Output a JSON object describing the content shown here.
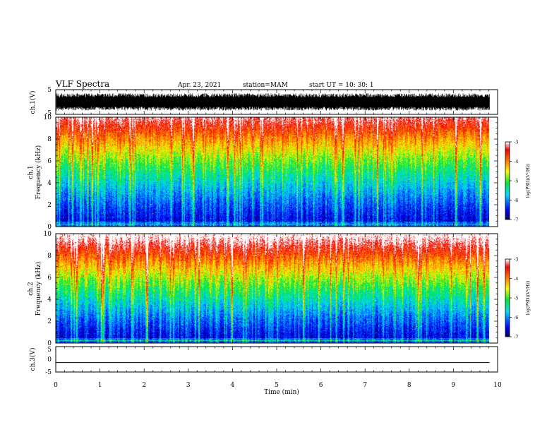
{
  "header": {
    "title": "VLF Spectra",
    "date": "Apr. 23, 2021",
    "station": "station=MAM",
    "start": "start  UT  =   10: 30: 1"
  },
  "chart_data": [
    {
      "type": "line",
      "panel": "ch1-waveform",
      "ylabel": "ch.1(V)",
      "ylim": [
        -5,
        5
      ],
      "y_ticks": [
        "5",
        "-5"
      ],
      "xlim": [
        0,
        10
      ],
      "note_y_range": [
        -3.5,
        3.5
      ]
    },
    {
      "type": "heatmap",
      "panel": "ch1-spectrogram",
      "ylabel": "ch.1\nFrequency (kHz)",
      "ylim": [
        0,
        10
      ],
      "y_ticks": [
        "0",
        "2",
        "4",
        "6",
        "8",
        "10"
      ],
      "xlim": [
        0,
        9.82
      ],
      "colorbar": {
        "label": "log(PSD)(V²/Hz)",
        "range": [
          -7,
          -3
        ],
        "ticks": [
          "-3",
          "-4",
          "-5",
          "-6",
          "-7"
        ]
      }
    },
    {
      "type": "heatmap",
      "panel": "ch2-spectrogram",
      "ylabel": "ch.2\nFrequency (kHz)",
      "ylim": [
        0,
        10
      ],
      "y_ticks": [
        "0",
        "2",
        "4",
        "6",
        "8",
        "10"
      ],
      "xlim": [
        0,
        9.82
      ],
      "colorbar": {
        "label": "log(PSD)(V²/Hz)",
        "range": [
          -7,
          -3
        ],
        "ticks": [
          "-3",
          "-4",
          "-5",
          "-6",
          "-7"
        ]
      }
    },
    {
      "type": "line",
      "panel": "ch3-waveform",
      "ylabel": "ch.3(V)",
      "ylim": [
        -5,
        5
      ],
      "y_ticks": [
        "5",
        "0",
        "-5"
      ],
      "x": [
        0,
        9.82
      ],
      "y": [
        -1.3,
        -1.3
      ]
    }
  ],
  "xaxis": {
    "label": "Time  (min)",
    "ticks": [
      "0",
      "1",
      "2",
      "3",
      "4",
      "5",
      "6",
      "7",
      "8",
      "9",
      "10"
    ],
    "range": [
      0,
      10
    ]
  },
  "colors": {
    "waveform": "#000000",
    "colormap": [
      "#000080",
      "#0000ff",
      "#00ffff",
      "#00ff00",
      "#ffff00",
      "#ff0000",
      "#ffffff"
    ]
  }
}
